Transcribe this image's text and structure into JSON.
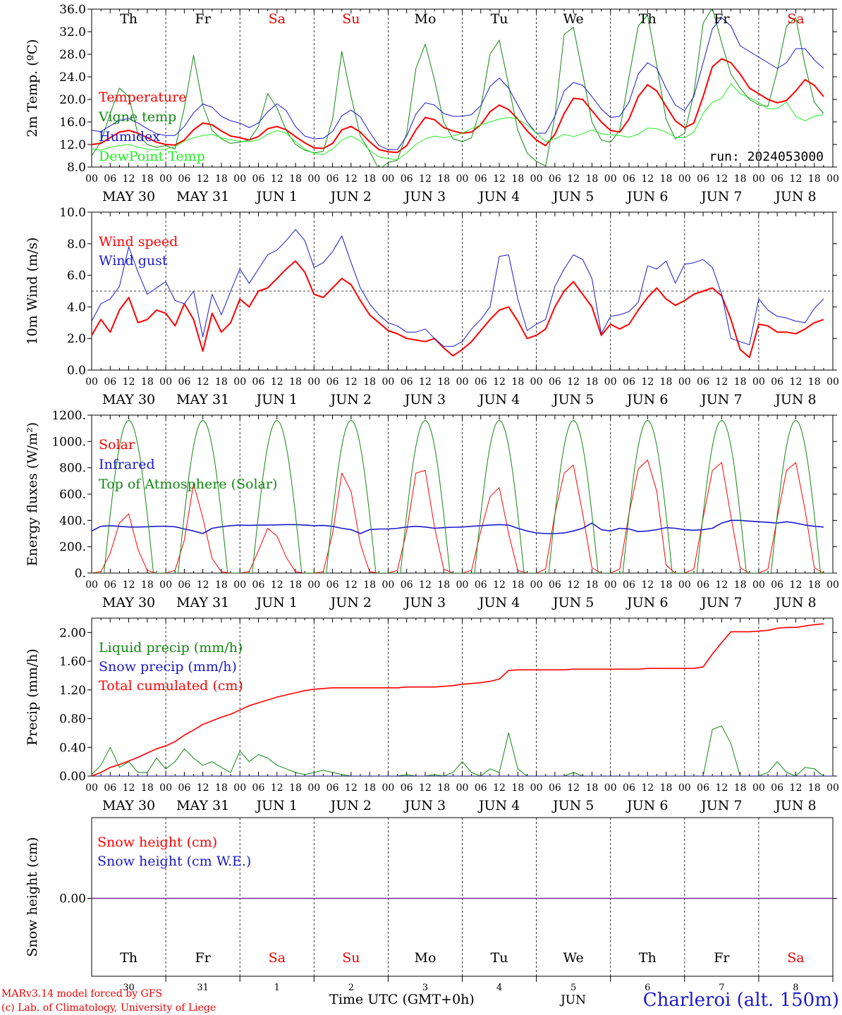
{
  "meta": {
    "run": "run: 2024053000",
    "credit_model": "MARv3.14 model forced by GFS",
    "credit_lab": "(c) Lab. of Climatology, University of Liege",
    "location": "Charleroi (alt. 150m)",
    "time_label": "Time UTC (GMT+0h)",
    "month_label": "JUN"
  },
  "colors": {
    "red": "#ff0000",
    "green": "#118811",
    "blue": "#1a1acc",
    "lime": "#22ee22",
    "purple": "#7a2aa0",
    "weekend": "#ee0000"
  },
  "days": {
    "weekdays": [
      "Th",
      "Fr",
      "Sa",
      "Su",
      "Mo",
      "Tu",
      "We",
      "Th",
      "Fr",
      "Sa"
    ],
    "weekend": [
      false,
      false,
      true,
      true,
      false,
      false,
      false,
      false,
      false,
      true
    ],
    "dates": [
      "MAY 30",
      "MAY 31",
      "JUN  1",
      "JUN  2",
      "JUN  3",
      "JUN  4",
      "JUN  5",
      "JUN  6",
      "JUN  7",
      "JUN  8"
    ],
    "day_numbers": [
      "30",
      "31",
      "1",
      "2",
      "3",
      "4",
      "5",
      "6",
      "7",
      "8"
    ],
    "hour_ticks": [
      "00",
      "06",
      "12",
      "18"
    ],
    "final_tick": "00"
  },
  "chart_data": [
    {
      "id": "temp",
      "type": "line",
      "ylabel": "2m Temp. (ºC)",
      "ylim": [
        8,
        36
      ],
      "yticks": [
        "8.0",
        "12.0",
        "16.0",
        "20.0",
        "24.0",
        "28.0",
        "32.0",
        "36.0"
      ],
      "x_unit": "hours since MAY 30 00 UTC",
      "x_step": 3,
      "series": [
        {
          "name": "Temperature",
          "color": "#ff0000",
          "width": 2,
          "y": [
            12.0,
            12.2,
            13.2,
            14.2,
            14.5,
            14.0,
            13.2,
            12.4,
            12.0,
            11.9,
            12.8,
            14.6,
            15.8,
            15.5,
            14.4,
            13.5,
            13.2,
            12.8,
            13.4,
            14.8,
            15.2,
            14.6,
            13.4,
            12.3,
            11.4,
            11.3,
            12.2,
            14.6,
            15.2,
            14.2,
            12.5,
            11.1,
            10.7,
            10.6,
            11.8,
            14.6,
            16.8,
            16.4,
            15.0,
            14.4,
            14.0,
            14.2,
            15.5,
            17.8,
            19.0,
            18.2,
            16.5,
            14.4,
            12.8,
            11.8,
            13.8,
            17.5,
            20.2,
            20.0,
            18.0,
            16.0,
            14.5,
            14.2,
            16.5,
            20.5,
            22.6,
            21.5,
            18.8,
            16.2,
            15.0,
            15.8,
            20.5,
            25.8,
            27.2,
            26.5,
            24.5,
            22.0,
            21.0,
            20.0,
            19.4,
            19.8,
            21.5,
            23.5,
            22.5,
            20.5
          ]
        },
        {
          "name": "Vigne temp",
          "color": "#118811",
          "width": 1,
          "y": [
            10.0,
            12.5,
            17.5,
            22.0,
            20.5,
            13.8,
            12.0,
            11.5,
            11.8,
            11.2,
            18.5,
            27.8,
            19.0,
            14.5,
            13.0,
            12.2,
            12.4,
            12.8,
            15.2,
            21.0,
            18.5,
            14.5,
            12.0,
            11.0,
            10.5,
            10.8,
            16.5,
            28.5,
            20.5,
            13.5,
            10.8,
            7.6,
            8.8,
            9.2,
            14.0,
            25.5,
            29.8,
            23.5,
            16.0,
            13.0,
            12.5,
            13.2,
            18.5,
            28.0,
            30.5,
            22.5,
            14.5,
            10.5,
            9.0,
            8.2,
            17.0,
            31.5,
            32.8,
            24.5,
            16.0,
            12.8,
            12.4,
            14.5,
            24.0,
            33.0,
            35.0,
            26.0,
            16.5,
            13.0,
            14.0,
            21.0,
            33.5,
            36.2,
            30.0,
            24.5,
            22.0,
            20.0,
            19.0,
            18.8,
            25.0,
            33.0,
            34.5,
            26.0,
            19.5,
            17.5
          ]
        },
        {
          "name": "Humidex",
          "color": "#1a1acc",
          "width": 1,
          "y": [
            14.5,
            14.3,
            15.3,
            16.3,
            16.6,
            15.8,
            14.8,
            13.9,
            13.6,
            13.6,
            15.2,
            17.6,
            19.2,
            18.6,
            17.0,
            16.2,
            15.8,
            15.0,
            15.8,
            17.8,
            19.2,
            18.0,
            15.2,
            13.5,
            13.0,
            13.1,
            14.3,
            17.1,
            18.1,
            16.9,
            14.2,
            11.8,
            11.1,
            11.1,
            13.5,
            17.4,
            19.4,
            19.0,
            17.5,
            17.0,
            17.0,
            17.3,
            18.9,
            22.3,
            23.8,
            22.0,
            19.0,
            16.0,
            14.0,
            14.0,
            17.0,
            21.5,
            23.0,
            22.5,
            20.5,
            18.3,
            16.8,
            17.0,
            19.5,
            24.5,
            26.5,
            25.5,
            22.0,
            19.0,
            18.0,
            20.5,
            26.5,
            32.5,
            34.5,
            33.0,
            29.5,
            28.5,
            27.5,
            26.5,
            25.5,
            26.5,
            29.0,
            29.0,
            27.0,
            25.5
          ]
        },
        {
          "name": "DewPoint Temp",
          "color": "#22ee22",
          "width": 1,
          "y": [
            11.2,
            11.0,
            11.5,
            11.8,
            12.0,
            11.5,
            11.2,
            11.0,
            11.2,
            11.6,
            12.6,
            13.2,
            13.6,
            13.8,
            13.2,
            12.8,
            12.6,
            12.5,
            12.8,
            13.8,
            14.5,
            14.0,
            12.5,
            11.2,
            10.4,
            10.2,
            11.2,
            12.8,
            13.5,
            12.6,
            11.0,
            9.8,
            9.5,
            9.3,
            10.5,
            12.0,
            13.0,
            13.5,
            13.2,
            13.5,
            14.0,
            14.8,
            15.5,
            16.0,
            16.5,
            16.8,
            16.5,
            15.5,
            14.0,
            12.5,
            13.0,
            13.8,
            13.4,
            13.9,
            14.6,
            13.9,
            13.7,
            13.6,
            13.3,
            13.8,
            14.9,
            14.8,
            14.2,
            13.3,
            13.2,
            14.2,
            17.5,
            19.5,
            20.2,
            22.8,
            21.0,
            20.3,
            19.5,
            18.3,
            18.4,
            19.5,
            17.0,
            16.2,
            17.0,
            17.3
          ]
        }
      ]
    },
    {
      "id": "wind",
      "type": "line",
      "ylabel": "10m Wind (m/s)",
      "ylim": [
        0,
        10
      ],
      "yticks": [
        "0.0",
        "2.0",
        "4.0",
        "6.0",
        "8.0",
        "10.0"
      ],
      "ref_line": 5,
      "x_unit": "hours since MAY 30 00 UTC",
      "x_step": 3,
      "series": [
        {
          "name": "Wind speed",
          "color": "#ff0000",
          "width": 2,
          "y": [
            2.2,
            3.2,
            2.4,
            3.8,
            4.6,
            3.0,
            3.2,
            3.8,
            3.6,
            2.8,
            4.2,
            3.2,
            1.2,
            3.6,
            2.4,
            3.0,
            4.5,
            4.0,
            5.0,
            5.2,
            5.8,
            6.4,
            6.9,
            6.2,
            4.8,
            4.6,
            5.2,
            5.8,
            5.4,
            4.4,
            3.5,
            3.0,
            2.5,
            2.3,
            2.0,
            1.9,
            1.8,
            2.0,
            1.4,
            0.9,
            1.3,
            1.8,
            2.5,
            3.2,
            3.8,
            4.0,
            3.1,
            2.0,
            2.2,
            2.6,
            4.0,
            5.0,
            5.6,
            4.8,
            4.0,
            2.2,
            2.9,
            2.6,
            2.9,
            3.8,
            4.6,
            5.2,
            4.5,
            4.1,
            4.4,
            4.8,
            5.0,
            5.2,
            4.7,
            3.2,
            1.3,
            0.8,
            2.9,
            2.8,
            2.4,
            2.4,
            2.3,
            2.6,
            3.0,
            3.2
          ]
        },
        {
          "name": "Wind gust",
          "color": "#1a1acc",
          "width": 1,
          "y": [
            3.1,
            4.2,
            4.5,
            5.3,
            7.8,
            6.2,
            4.8,
            5.2,
            5.6,
            4.4,
            4.2,
            5.0,
            2.1,
            4.8,
            3.5,
            5.0,
            6.4,
            5.5,
            6.4,
            7.3,
            7.6,
            8.2,
            8.9,
            8.2,
            6.5,
            6.8,
            7.5,
            8.5,
            6.8,
            5.2,
            4.2,
            3.5,
            3.0,
            2.8,
            2.4,
            2.4,
            2.6,
            2.0,
            1.5,
            1.5,
            1.8,
            2.6,
            3.2,
            4.0,
            7.2,
            7.3,
            4.5,
            2.5,
            2.9,
            3.2,
            5.3,
            6.4,
            7.3,
            7.0,
            5.8,
            2.3,
            3.4,
            3.5,
            3.7,
            4.3,
            6.6,
            6.4,
            6.9,
            5.5,
            6.7,
            6.8,
            7.0,
            6.5,
            4.8,
            2.0,
            1.8,
            1.6,
            4.5,
            3.8,
            3.4,
            3.3,
            3.1,
            3.0,
            3.9,
            4.5
          ]
        }
      ]
    },
    {
      "id": "energy",
      "type": "line",
      "ylabel": "Energy fluxes (W/m²)",
      "ylim": [
        0,
        1200
      ],
      "yticks": [
        "0.",
        "200.",
        "400.",
        "600.",
        "800.",
        "1000.",
        "1200."
      ],
      "x_unit": "hours since MAY 30 00 UTC",
      "x_step": 3,
      "series": [
        {
          "name": "Solar",
          "color": "#ff0000",
          "width": 1,
          "y": [
            0,
            10,
            150,
            380,
            450,
            180,
            20,
            0,
            0,
            20,
            250,
            680,
            420,
            110,
            10,
            0,
            0,
            10,
            170,
            340,
            280,
            120,
            10,
            0,
            0,
            10,
            300,
            760,
            620,
            220,
            10,
            0,
            0,
            20,
            320,
            760,
            780,
            350,
            30,
            0,
            0,
            20,
            320,
            580,
            650,
            300,
            20,
            0,
            0,
            30,
            450,
            760,
            820,
            450,
            40,
            0,
            0,
            30,
            450,
            790,
            860,
            620,
            60,
            0,
            0,
            30,
            420,
            780,
            840,
            430,
            40,
            0,
            0,
            30,
            420,
            780,
            840,
            480,
            40,
            0
          ]
        },
        {
          "name": "Infrared",
          "color": "#1a1acc",
          "width": 1.6,
          "y": [
            320,
            355,
            360,
            355,
            350,
            350,
            352,
            355,
            355,
            352,
            335,
            320,
            300,
            340,
            352,
            360,
            365,
            362,
            365,
            365,
            366,
            368,
            368,
            365,
            360,
            362,
            355,
            340,
            330,
            300,
            330,
            335,
            335,
            340,
            350,
            355,
            350,
            340,
            345,
            348,
            350,
            355,
            360,
            365,
            368,
            365,
            340,
            320,
            305,
            300,
            300,
            305,
            320,
            340,
            380,
            330,
            320,
            340,
            335,
            315,
            320,
            330,
            345,
            340,
            330,
            325,
            330,
            340,
            380,
            400,
            400,
            395,
            390,
            385,
            380,
            390,
            380,
            365,
            355,
            350
          ]
        },
        {
          "name": "Top of Atmosphere (Solar)",
          "color": "#118811",
          "width": 1,
          "peak": 1160,
          "shape": "diurnal"
        }
      ]
    },
    {
      "id": "precip",
      "type": "line",
      "ylabel": "Precip (mm/h)",
      "ylim": [
        0,
        2.2
      ],
      "yticks": [
        "0.00",
        "0.40",
        "0.80",
        "1.20",
        "1.60",
        "2.00"
      ],
      "x_unit": "hours since MAY 30 00 UTC",
      "x_step": 3,
      "series": [
        {
          "name": "Liquid precip (mm/h)",
          "color": "#118811",
          "width": 1,
          "y": [
            0.02,
            0.15,
            0.4,
            0.12,
            0.2,
            0.05,
            0.05,
            0.25,
            0.1,
            0.2,
            0.38,
            0.25,
            0.15,
            0.2,
            0.12,
            0.05,
            0.35,
            0.2,
            0.3,
            0.25,
            0.15,
            0.1,
            0.05,
            0.02,
            0.05,
            0.08,
            0.05,
            0.02,
            0.0,
            0.0,
            0.0,
            0.0,
            0.0,
            0.0,
            0.02,
            0.0,
            0.0,
            0.02,
            0.0,
            0.05,
            0.2,
            0.05,
            0.0,
            0.1,
            0.05,
            0.6,
            0.1,
            0.0,
            0.0,
            0.0,
            0.0,
            0.0,
            0.05,
            0.0,
            0.0,
            0.0,
            0.0,
            0.0,
            0.0,
            0.0,
            0.0,
            0.0,
            0.0,
            0.0,
            0.0,
            0.0,
            0.0,
            0.65,
            0.7,
            0.45,
            0.0,
            0.0,
            0.0,
            0.05,
            0.2,
            0.05,
            0.0,
            0.12,
            0.1,
            0.0
          ]
        },
        {
          "name": "Snow precip (mm/h)",
          "color": "#1a1acc",
          "width": 1,
          "y_const": 0
        },
        {
          "name": "Total cumulated (cm)",
          "color": "#ff0000",
          "width": 1.6,
          "y": [
            0.0,
            0.05,
            0.12,
            0.16,
            0.21,
            0.26,
            0.32,
            0.38,
            0.42,
            0.48,
            0.57,
            0.64,
            0.72,
            0.77,
            0.82,
            0.86,
            0.92,
            0.98,
            1.02,
            1.06,
            1.1,
            1.13,
            1.16,
            1.19,
            1.21,
            1.22,
            1.23,
            1.23,
            1.23,
            1.23,
            1.23,
            1.23,
            1.23,
            1.23,
            1.24,
            1.24,
            1.24,
            1.24,
            1.25,
            1.26,
            1.28,
            1.29,
            1.3,
            1.32,
            1.35,
            1.47,
            1.48,
            1.48,
            1.48,
            1.48,
            1.48,
            1.48,
            1.49,
            1.49,
            1.49,
            1.49,
            1.49,
            1.49,
            1.49,
            1.49,
            1.5,
            1.5,
            1.5,
            1.5,
            1.5,
            1.5,
            1.52,
            1.7,
            1.86,
            2.01,
            2.01,
            2.01,
            2.02,
            2.03,
            2.06,
            2.07,
            2.07,
            2.09,
            2.11,
            2.12
          ]
        }
      ]
    },
    {
      "id": "snow",
      "type": "line",
      "ylabel": "Snow height (cm)",
      "ytick": "0.00",
      "series": [
        {
          "name": "Snow height (cm)",
          "color": "#ff0000",
          "value": 0
        },
        {
          "name": "Snow height (cm W.E.)",
          "color": "#1a1acc",
          "value": 0
        }
      ]
    }
  ]
}
